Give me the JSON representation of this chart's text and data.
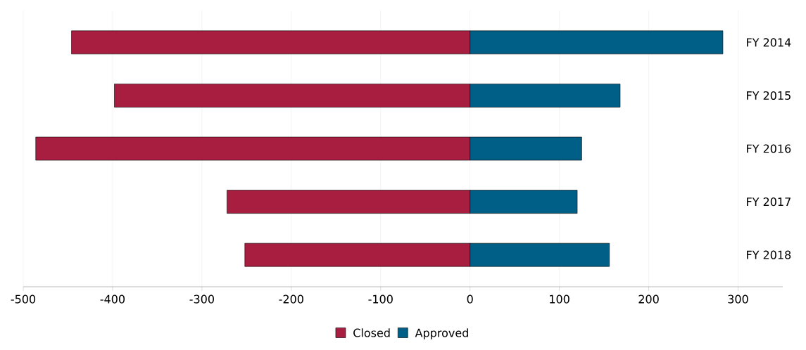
{
  "chart_data": {
    "type": "bar",
    "orientation": "horizontal",
    "stacked": true,
    "categories": [
      "FY 2014",
      "FY 2015",
      "FY 2016",
      "FY 2017",
      "FY 2018"
    ],
    "series": [
      {
        "name": "Closed",
        "color": "#a81e40",
        "values": [
          -446,
          -398,
          -486,
          -272,
          -252
        ]
      },
      {
        "name": "Approved",
        "color": "#005f87",
        "values": [
          283,
          168,
          125,
          120,
          156
        ]
      }
    ],
    "xlim": [
      -500,
      350
    ],
    "xticks": [
      -500,
      -400,
      -300,
      -200,
      -100,
      0,
      100,
      200,
      300
    ],
    "grid": "x",
    "legend": "bottom"
  }
}
